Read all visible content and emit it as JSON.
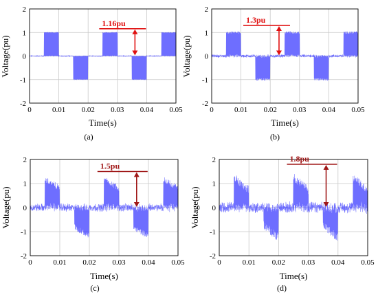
{
  "colors": {
    "signal": "#3d3dff",
    "annotation_ab": "#e01010",
    "annotation_cd": "#a01818",
    "grid": "#c8c8c8",
    "axis": "#000000"
  },
  "chart_data": [
    {
      "type": "line",
      "panel": "(a)",
      "xlabel": "Time(s)",
      "ylabel": "Voltage(pu)",
      "xlim": [
        0,
        0.05
      ],
      "ylim": [
        -2,
        2
      ],
      "xticks": [
        "0",
        "0.01",
        "0.02",
        "0.03",
        "0.04",
        "0.05"
      ],
      "yticks": [
        "-2",
        "-1",
        "0",
        "1",
        "2"
      ],
      "grid": true,
      "annotation": {
        "label": "1.16pu",
        "peak": 1.16,
        "t": 0.036
      },
      "signal": {
        "description_levels": [
          -1,
          0,
          1
        ],
        "noise": 0.03,
        "period": 0.02,
        "phase": 0.0
      }
    },
    {
      "type": "line",
      "panel": "(b)",
      "xlabel": "Time(s)",
      "ylabel": "Voltage(pu)",
      "xlim": [
        0,
        0.05
      ],
      "ylim": [
        -2,
        2
      ],
      "xticks": [
        "0",
        "0.01",
        "0.02",
        "0.03",
        "0.04",
        "0.05"
      ],
      "yticks": [
        "-2",
        "-1",
        "0",
        "1",
        "2"
      ],
      "grid": true,
      "annotation": {
        "label": "1.3pu",
        "peak": 1.3,
        "t": 0.023
      },
      "signal": {
        "description_levels": [
          -1,
          0,
          1
        ],
        "noise": 0.1,
        "period": 0.02,
        "phase": 0.0
      }
    },
    {
      "type": "line",
      "panel": "(c)",
      "xlabel": "Time(s)",
      "ylabel": "Voltage(pu)",
      "xlim": [
        0,
        0.05
      ],
      "ylim": [
        -2,
        2
      ],
      "xticks": [
        "0",
        "0.01",
        "0.02",
        "0.03",
        "0.04",
        "0.05"
      ],
      "yticks": [
        "-2",
        "-1",
        "0",
        "1",
        "2"
      ],
      "grid": true,
      "annotation": {
        "label": "1.5pu",
        "peak": 1.5,
        "t": 0.036
      },
      "signal": {
        "description_levels": [
          -1,
          0,
          1
        ],
        "noise": 0.25,
        "period": 0.02,
        "phase": 0.0
      }
    },
    {
      "type": "line",
      "panel": "(d)",
      "xlabel": "Time(s)",
      "ylabel": "Voltage(pu)",
      "xlim": [
        0,
        0.05
      ],
      "ylim": [
        -2,
        2
      ],
      "xticks": [
        "0",
        "0.01",
        "0.02",
        "0.03",
        "0.04",
        "0.05"
      ],
      "yticks": [
        "-2",
        "-1",
        "0",
        "1",
        "2"
      ],
      "grid": true,
      "annotation": {
        "label": "1.8pu",
        "peak": 1.8,
        "t": 0.036
      },
      "signal": {
        "description_levels": [
          -1,
          0,
          1
        ],
        "noise": 0.35,
        "period": 0.02,
        "phase": 0.0
      }
    }
  ]
}
